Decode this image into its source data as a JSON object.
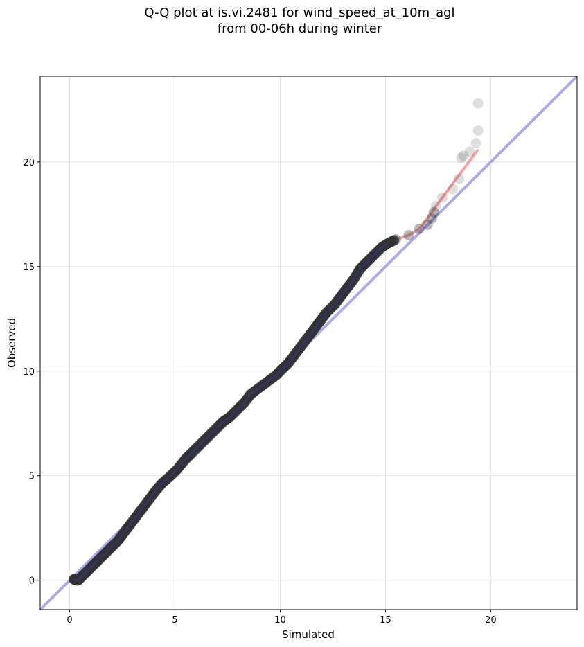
{
  "chart_data": {
    "type": "scatter",
    "title": "Q-Q plot at is.vi.2481 for wind_speed_at_10m_agl",
    "subtitle": "from 00-06h during winter",
    "xlabel": "Simulated",
    "ylabel": "Observed",
    "xlim": [
      -1.4,
      24.1
    ],
    "ylim": [
      -1.4,
      24.1
    ],
    "xticks": [
      0,
      5,
      10,
      15,
      20
    ],
    "yticks": [
      0,
      5,
      10,
      15,
      20
    ],
    "grid": true,
    "colors": {
      "points": "#333333",
      "identity_line": "#aaaaee",
      "fit_line": "#f5a3a3",
      "inner_line": "#3333aa"
    },
    "series": [
      {
        "values": [
          [
            0.2,
            0.05
          ],
          [
            0.3,
            0.0
          ],
          [
            0.4,
            0.0
          ],
          [
            0.5,
            0.1
          ],
          [
            0.6,
            0.2
          ],
          [
            0.8,
            0.4
          ],
          [
            1.0,
            0.6
          ],
          [
            1.2,
            0.8
          ],
          [
            1.4,
            1.0
          ],
          [
            1.6,
            1.2
          ],
          [
            1.8,
            1.4
          ],
          [
            2.0,
            1.6
          ],
          [
            2.3,
            1.9
          ],
          [
            2.6,
            2.3
          ],
          [
            2.9,
            2.7
          ],
          [
            3.2,
            3.1
          ],
          [
            3.5,
            3.5
          ],
          [
            3.8,
            3.9
          ],
          [
            4.1,
            4.3
          ],
          [
            4.4,
            4.65
          ],
          [
            4.8,
            5.0
          ],
          [
            5.1,
            5.3
          ],
          [
            5.5,
            5.8
          ],
          [
            5.8,
            6.1
          ],
          [
            6.2,
            6.5
          ],
          [
            6.6,
            6.9
          ],
          [
            7.0,
            7.3
          ],
          [
            7.3,
            7.6
          ],
          [
            7.6,
            7.8
          ],
          [
            8.0,
            8.2
          ],
          [
            8.3,
            8.5
          ],
          [
            8.6,
            8.9
          ],
          [
            9.0,
            9.2
          ],
          [
            9.4,
            9.5
          ],
          [
            9.8,
            9.8
          ],
          [
            10.1,
            10.1
          ],
          [
            10.4,
            10.4
          ],
          [
            10.7,
            10.8
          ],
          [
            11.0,
            11.2
          ],
          [
            11.3,
            11.6
          ],
          [
            11.6,
            12.0
          ],
          [
            11.9,
            12.4
          ],
          [
            12.2,
            12.8
          ],
          [
            12.6,
            13.2
          ],
          [
            12.9,
            13.6
          ],
          [
            13.2,
            14.0
          ],
          [
            13.5,
            14.4
          ],
          [
            13.8,
            14.9
          ],
          [
            14.1,
            15.2
          ],
          [
            14.4,
            15.5
          ],
          [
            14.8,
            15.9
          ],
          [
            15.1,
            16.1
          ],
          [
            15.5,
            16.3
          ],
          [
            16.1,
            16.5
          ],
          [
            16.6,
            16.8
          ],
          [
            17.0,
            17.0
          ],
          [
            17.2,
            17.3
          ],
          [
            17.3,
            17.6
          ],
          [
            17.4,
            17.9
          ],
          [
            17.7,
            18.3
          ],
          [
            18.2,
            18.7
          ],
          [
            18.5,
            19.2
          ],
          [
            18.6,
            20.2
          ],
          [
            18.7,
            20.3
          ],
          [
            19.0,
            20.5
          ],
          [
            19.3,
            20.9
          ],
          [
            19.4,
            21.5
          ],
          [
            19.4,
            22.8
          ]
        ]
      }
    ]
  }
}
